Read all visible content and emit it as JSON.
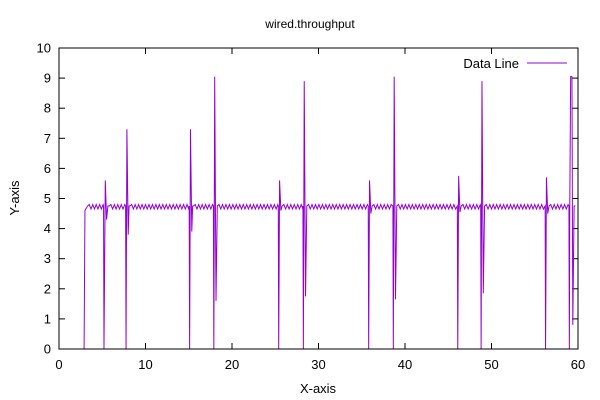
{
  "chart_data": {
    "type": "line",
    "title": "wired.throughput",
    "xlabel": "X-axis",
    "ylabel": "Y-axis",
    "xlim": [
      0,
      60
    ],
    "ylim": [
      0,
      10
    ],
    "x_ticks": [
      0,
      10,
      20,
      30,
      40,
      50,
      60
    ],
    "y_ticks": [
      0,
      1,
      2,
      3,
      4,
      5,
      6,
      7,
      8,
      9,
      10
    ],
    "grid": false,
    "legend_position": "top-right",
    "colors": {
      "series": "#9400d3",
      "axes": "#000000",
      "background": "#ffffff"
    },
    "series": [
      {
        "name": "Data Line",
        "baseline": 4.75,
        "ripple_low": 4.65,
        "ripple_high": 4.8,
        "x": [
          2.9,
          3.0,
          3.3,
          5.15,
          5.2,
          5.35,
          5.5,
          5.65,
          5.8,
          7.7,
          7.75,
          7.85,
          8.0,
          8.1,
          8.2,
          15.05,
          15.1,
          15.2,
          15.35,
          15.45,
          15.55,
          17.85,
          17.9,
          18.0,
          18.15,
          18.3,
          25.35,
          25.4,
          25.5,
          25.65,
          25.8,
          28.2,
          28.25,
          28.35,
          28.5,
          28.65,
          35.75,
          35.8,
          35.9,
          36.05,
          36.2,
          38.6,
          38.65,
          38.75,
          38.9,
          39.05,
          46.05,
          46.1,
          46.2,
          46.35,
          46.5,
          48.75,
          48.8,
          48.9,
          49.05,
          49.2,
          56.2,
          56.25,
          56.35,
          56.5,
          56.65,
          58.95,
          59.0,
          59.05,
          59.15,
          59.3,
          59.4,
          59.55,
          59.7
        ],
        "y": [
          0,
          4.6,
          4.75,
          4.75,
          0,
          5.6,
          4.3,
          4.75,
          4.75,
          4.75,
          0,
          7.3,
          3.8,
          4.75,
          4.75,
          4.75,
          0,
          7.3,
          3.9,
          4.75,
          4.75,
          4.75,
          0,
          9.05,
          1.6,
          4.75,
          4.75,
          0,
          5.6,
          4.6,
          4.75,
          4.75,
          0,
          8.9,
          1.75,
          4.75,
          4.75,
          0,
          5.6,
          4.5,
          4.75,
          4.75,
          0,
          9.05,
          1.65,
          4.75,
          4.75,
          0,
          5.75,
          4.55,
          4.75,
          4.75,
          0,
          8.9,
          1.85,
          4.75,
          4.75,
          0,
          5.7,
          4.5,
          4.75,
          4.75,
          0,
          4.75,
          9.05,
          9.05,
          0.8,
          4.75,
          4.75
        ]
      }
    ]
  }
}
